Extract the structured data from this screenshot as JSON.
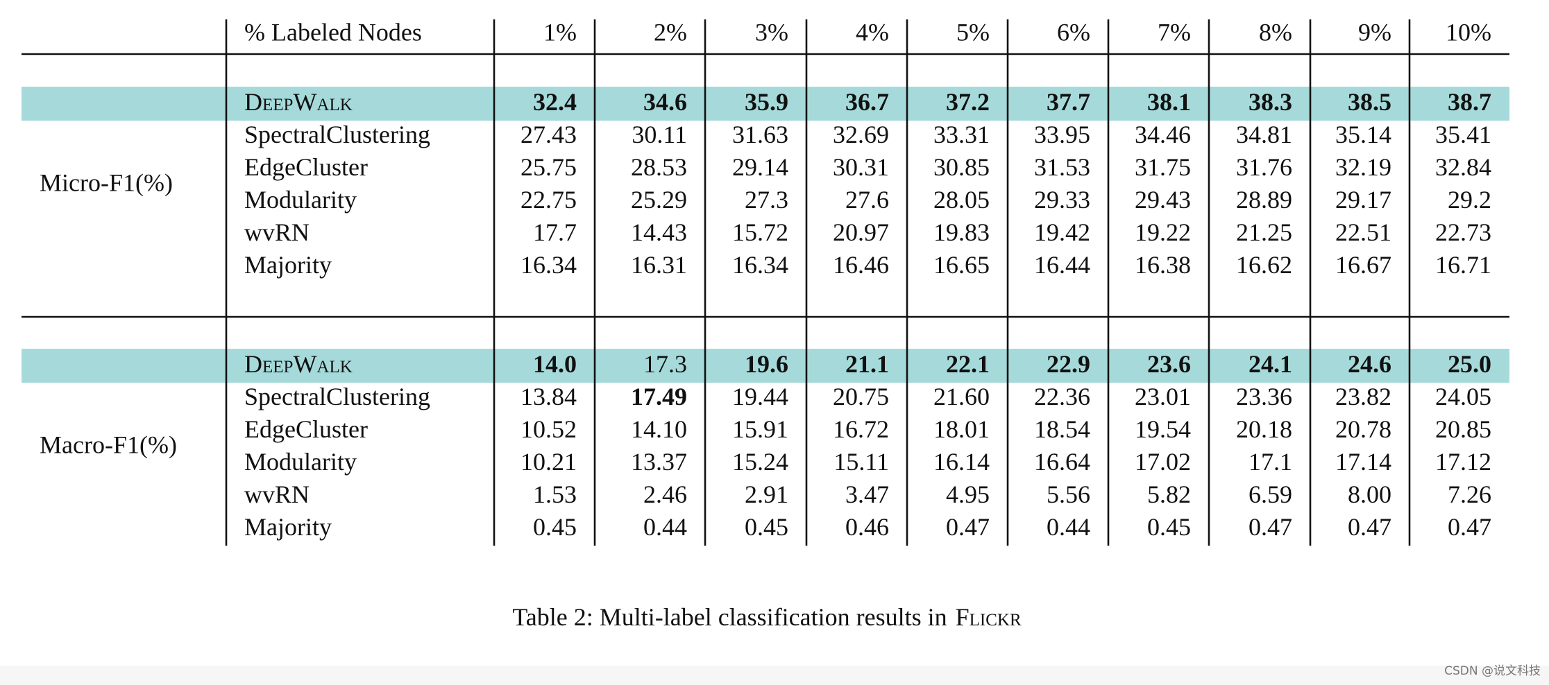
{
  "header": {
    "title": "% Labeled Nodes",
    "columns": [
      "1%",
      "2%",
      "3%",
      "4%",
      "5%",
      "6%",
      "7%",
      "8%",
      "9%",
      "10%"
    ]
  },
  "groups": [
    {
      "label": "Micro-F1(%)",
      "highlight_row": 0,
      "highlight_color": "#a6dada",
      "rows": [
        {
          "name": "DeepWalk",
          "small_caps": true,
          "bold": [
            0,
            1,
            2,
            3,
            4,
            5,
            6,
            7,
            8,
            9
          ],
          "values": [
            "32.4",
            "34.6",
            "35.9",
            "36.7",
            "37.2",
            "37.7",
            "38.1",
            "38.3",
            "38.5",
            "38.7"
          ]
        },
        {
          "name": "SpectralClustering",
          "values": [
            "27.43",
            "30.11",
            "31.63",
            "32.69",
            "33.31",
            "33.95",
            "34.46",
            "34.81",
            "35.14",
            "35.41"
          ]
        },
        {
          "name": "EdgeCluster",
          "values": [
            "25.75",
            "28.53",
            "29.14",
            "30.31",
            "30.85",
            "31.53",
            "31.75",
            "31.76",
            "32.19",
            "32.84"
          ]
        },
        {
          "name": "Modularity",
          "values": [
            "22.75",
            "25.29",
            "27.3",
            "27.6",
            "28.05",
            "29.33",
            "29.43",
            "28.89",
            "29.17",
            "29.2"
          ]
        },
        {
          "name": "wvRN",
          "values": [
            "17.7",
            "14.43",
            "15.72",
            "20.97",
            "19.83",
            "19.42",
            "19.22",
            "21.25",
            "22.51",
            "22.73"
          ]
        },
        {
          "name": "Majority",
          "values": [
            "16.34",
            "16.31",
            "16.34",
            "16.46",
            "16.65",
            "16.44",
            "16.38",
            "16.62",
            "16.67",
            "16.71"
          ]
        }
      ]
    },
    {
      "label": "Macro-F1(%)",
      "highlight_row": 0,
      "highlight_color": "#a6dada",
      "rows": [
        {
          "name": "DeepWalk",
          "small_caps": true,
          "bold": [
            0,
            2,
            3,
            4,
            5,
            6,
            7,
            8,
            9
          ],
          "values": [
            "14.0",
            "17.3",
            "19.6",
            "21.1",
            "22.1",
            "22.9",
            "23.6",
            "24.1",
            "24.6",
            "25.0"
          ]
        },
        {
          "name": "SpectralClustering",
          "bold": [
            1
          ],
          "values": [
            "13.84",
            "17.49",
            "19.44",
            "20.75",
            "21.60",
            "22.36",
            "23.01",
            "23.36",
            "23.82",
            "24.05"
          ]
        },
        {
          "name": "EdgeCluster",
          "values": [
            "10.52",
            "14.10",
            "15.91",
            "16.72",
            "18.01",
            "18.54",
            "19.54",
            "20.18",
            "20.78",
            "20.85"
          ]
        },
        {
          "name": "Modularity",
          "values": [
            "10.21",
            "13.37",
            "15.24",
            "15.11",
            "16.14",
            "16.64",
            "17.02",
            "17.1",
            "17.14",
            "17.12"
          ]
        },
        {
          "name": "wvRN",
          "values": [
            "1.53",
            "2.46",
            "2.91",
            "3.47",
            "4.95",
            "5.56",
            "5.82",
            "6.59",
            "8.00",
            "7.26"
          ]
        },
        {
          "name": "Majority",
          "values": [
            "0.45",
            "0.44",
            "0.45",
            "0.46",
            "0.47",
            "0.44",
            "0.45",
            "0.47",
            "0.47",
            "0.47"
          ]
        }
      ]
    }
  ],
  "caption": {
    "text": "Table 2: Multi-label classification results in",
    "dataset": "Flickr"
  },
  "watermark": "CSDN @说文科技"
}
